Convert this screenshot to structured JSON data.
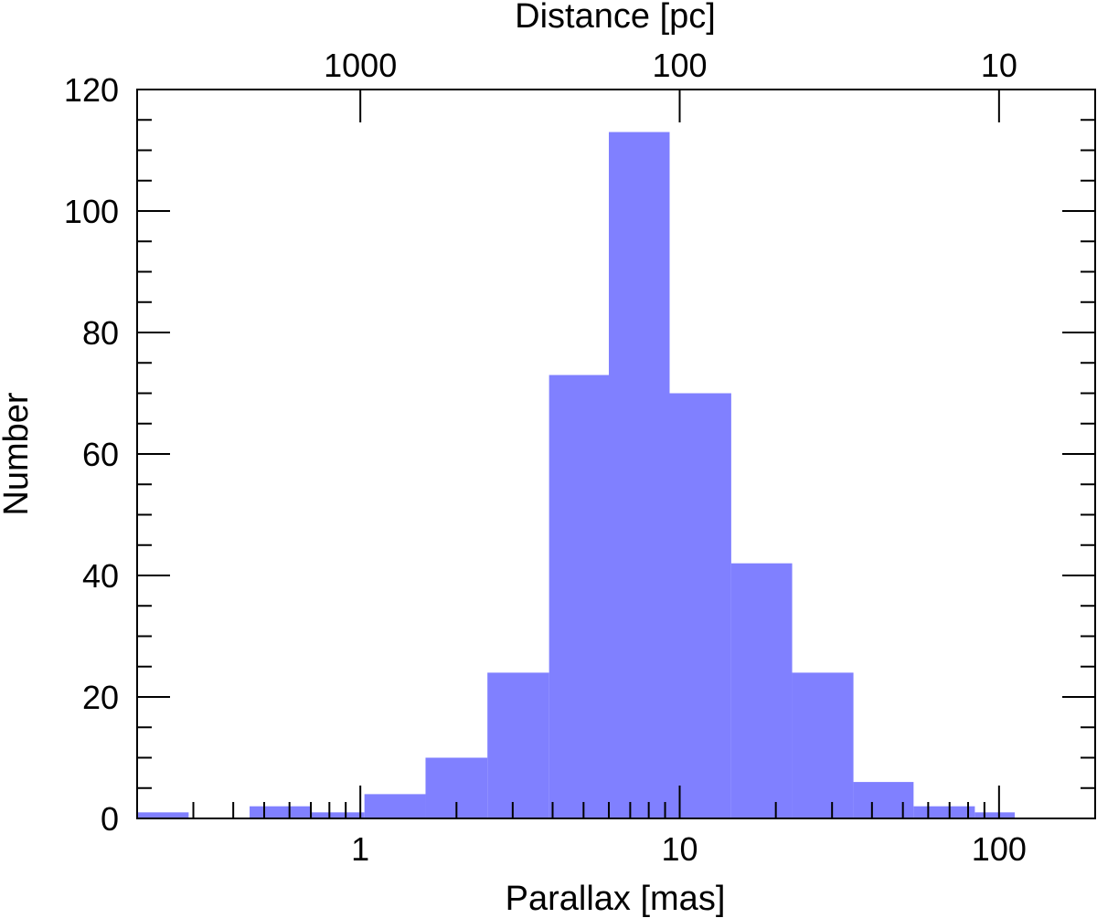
{
  "chart_data": {
    "type": "bar",
    "xlabel": "Parallax [mas]",
    "ylabel": "Number",
    "top_xlabel": "Distance [pc]",
    "x_scale": "log",
    "xlim": [
      0.2,
      200
    ],
    "ylim": [
      0,
      120
    ],
    "bar_color": "#8080ff",
    "y_ticks": [
      0,
      20,
      40,
      60,
      80,
      100,
      120
    ],
    "y_tick_labels": [
      "0",
      "20",
      "40",
      "60",
      "80",
      "100",
      "120"
    ],
    "x_ticks": [
      1,
      10,
      100
    ],
    "x_tick_labels": [
      "1",
      "10",
      "100"
    ],
    "top_ticks": [
      1000,
      100,
      10
    ],
    "top_tick_labels": [
      "1000",
      "100",
      "10"
    ],
    "bins": [
      {
        "x0": 0.2,
        "x1": 0.29,
        "count": 1
      },
      {
        "x0": 0.45,
        "x1": 0.7,
        "count": 2
      },
      {
        "x0": 0.7,
        "x1": 1.03,
        "count": 1
      },
      {
        "x0": 1.03,
        "x1": 1.6,
        "count": 4
      },
      {
        "x0": 1.6,
        "x1": 2.5,
        "count": 10
      },
      {
        "x0": 2.5,
        "x1": 3.9,
        "count": 24
      },
      {
        "x0": 3.9,
        "x1": 6.0,
        "count": 73
      },
      {
        "x0": 6.0,
        "x1": 9.3,
        "count": 113
      },
      {
        "x0": 9.3,
        "x1": 14.5,
        "count": 70
      },
      {
        "x0": 14.5,
        "x1": 22.5,
        "count": 42
      },
      {
        "x0": 22.5,
        "x1": 35,
        "count": 24
      },
      {
        "x0": 35,
        "x1": 54,
        "count": 6
      },
      {
        "x0": 54,
        "x1": 84,
        "count": 2
      },
      {
        "x0": 84,
        "x1": 112,
        "count": 1
      }
    ]
  }
}
